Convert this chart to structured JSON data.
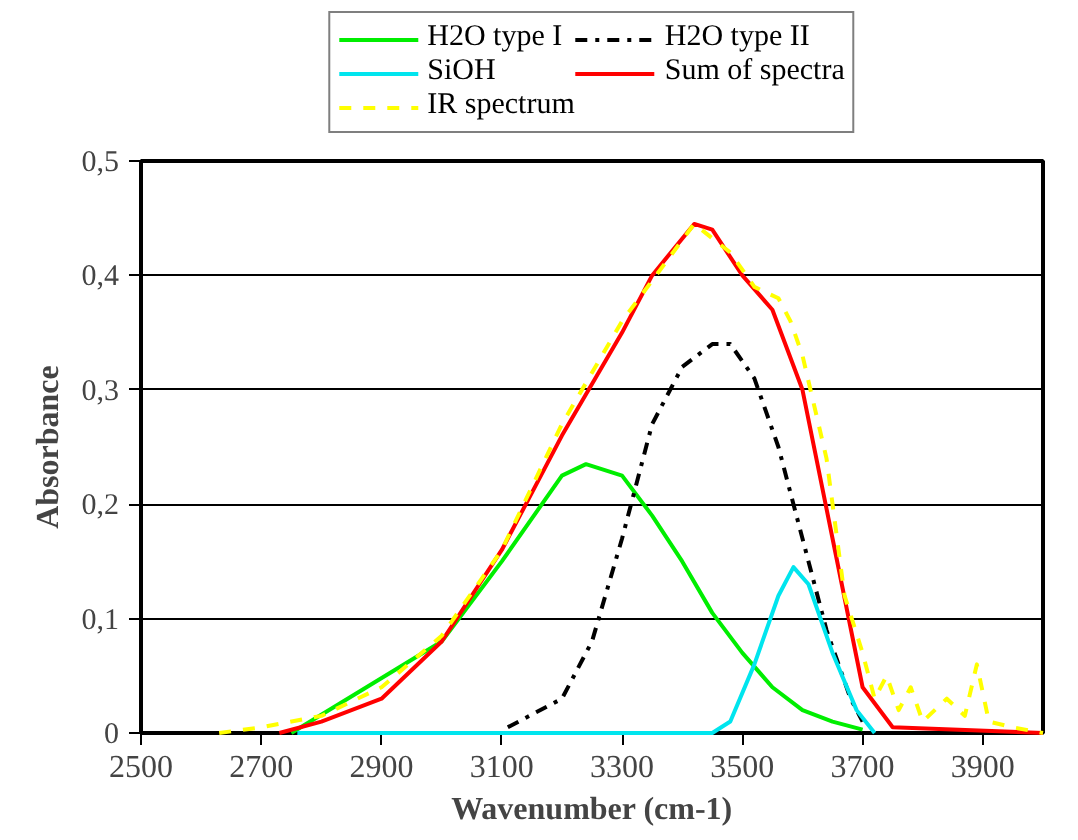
{
  "chart_data": {
    "type": "line",
    "xlabel": "Wavenumber (cm-1)",
    "ylabel": "Absorbance",
    "xlim": [
      2500,
      4000
    ],
    "xticks": [
      2500,
      2700,
      2900,
      3100,
      3300,
      3500,
      3700,
      3900
    ],
    "ylim": [
      0,
      0.5
    ],
    "yticks": [
      0,
      {
        "value": 0.1,
        "label": "0,1"
      },
      {
        "value": 0.2,
        "label": "0,2"
      },
      {
        "value": 0.3,
        "label": "0,3"
      },
      {
        "value": 0.4,
        "label": "0,4"
      },
      {
        "value": 0.5,
        "label": "0,5"
      }
    ],
    "grid": "y",
    "legend": "top",
    "marker": "none",
    "series": [
      {
        "name": "H2O type I",
        "color": "#00ee00",
        "line_style": "solid",
        "x": [
          2750,
          3000,
          3100,
          3200,
          3240,
          3300,
          3350,
          3400,
          3450,
          3500,
          3550,
          3600,
          3650,
          3700
        ],
        "values": [
          0,
          0.08,
          0.15,
          0.225,
          0.235,
          0.225,
          0.19,
          0.15,
          0.105,
          0.07,
          0.04,
          0.02,
          0.01,
          0.003
        ]
      },
      {
        "name": "H2O type II",
        "color": "#000000",
        "line_style": "dashdot",
        "x": [
          3110,
          3200,
          3250,
          3300,
          3350,
          3400,
          3450,
          3480,
          3520,
          3560,
          3600,
          3640,
          3680,
          3700
        ],
        "values": [
          0.005,
          0.03,
          0.08,
          0.17,
          0.27,
          0.32,
          0.34,
          0.34,
          0.31,
          0.25,
          0.17,
          0.09,
          0.03,
          0.01
        ]
      },
      {
        "name": "SiOH",
        "color": "#00e5ee",
        "line_style": "solid",
        "x": [
          2760,
          3450,
          3480,
          3520,
          3560,
          3585,
          3610,
          3650,
          3690,
          3720
        ],
        "values": [
          0,
          0,
          0.01,
          0.06,
          0.12,
          0.145,
          0.13,
          0.07,
          0.02,
          0
        ]
      },
      {
        "name": "Sum of spectra",
        "color": "#ff0000",
        "line_style": "solid",
        "x": [
          2730,
          2800,
          2900,
          3000,
          3100,
          3200,
          3300,
          3350,
          3420,
          3450,
          3500,
          3550,
          3600,
          3650,
          3700,
          3750,
          4000
        ],
        "values": [
          0,
          0.01,
          0.03,
          0.08,
          0.16,
          0.26,
          0.35,
          0.4,
          0.445,
          0.44,
          0.4,
          0.37,
          0.3,
          0.17,
          0.04,
          0.005,
          0
        ]
      },
      {
        "name": "IR spectrum",
        "color": "#ffff00",
        "line_style": "dashed",
        "x": [
          2630,
          2700,
          2800,
          2900,
          3000,
          3100,
          3200,
          3300,
          3420,
          3480,
          3520,
          3560,
          3580,
          3600,
          3640,
          3670,
          3700,
          3720,
          3740,
          3760,
          3780,
          3800,
          3840,
          3870,
          3890,
          3910,
          3950,
          4000
        ],
        "values": [
          0,
          0.005,
          0.015,
          0.04,
          0.085,
          0.16,
          0.27,
          0.36,
          0.445,
          0.42,
          0.39,
          0.38,
          0.36,
          0.33,
          0.24,
          0.12,
          0.07,
          0.03,
          0.05,
          0.02,
          0.04,
          0.01,
          0.03,
          0.015,
          0.06,
          0.01,
          0.005,
          0
        ]
      }
    ]
  }
}
